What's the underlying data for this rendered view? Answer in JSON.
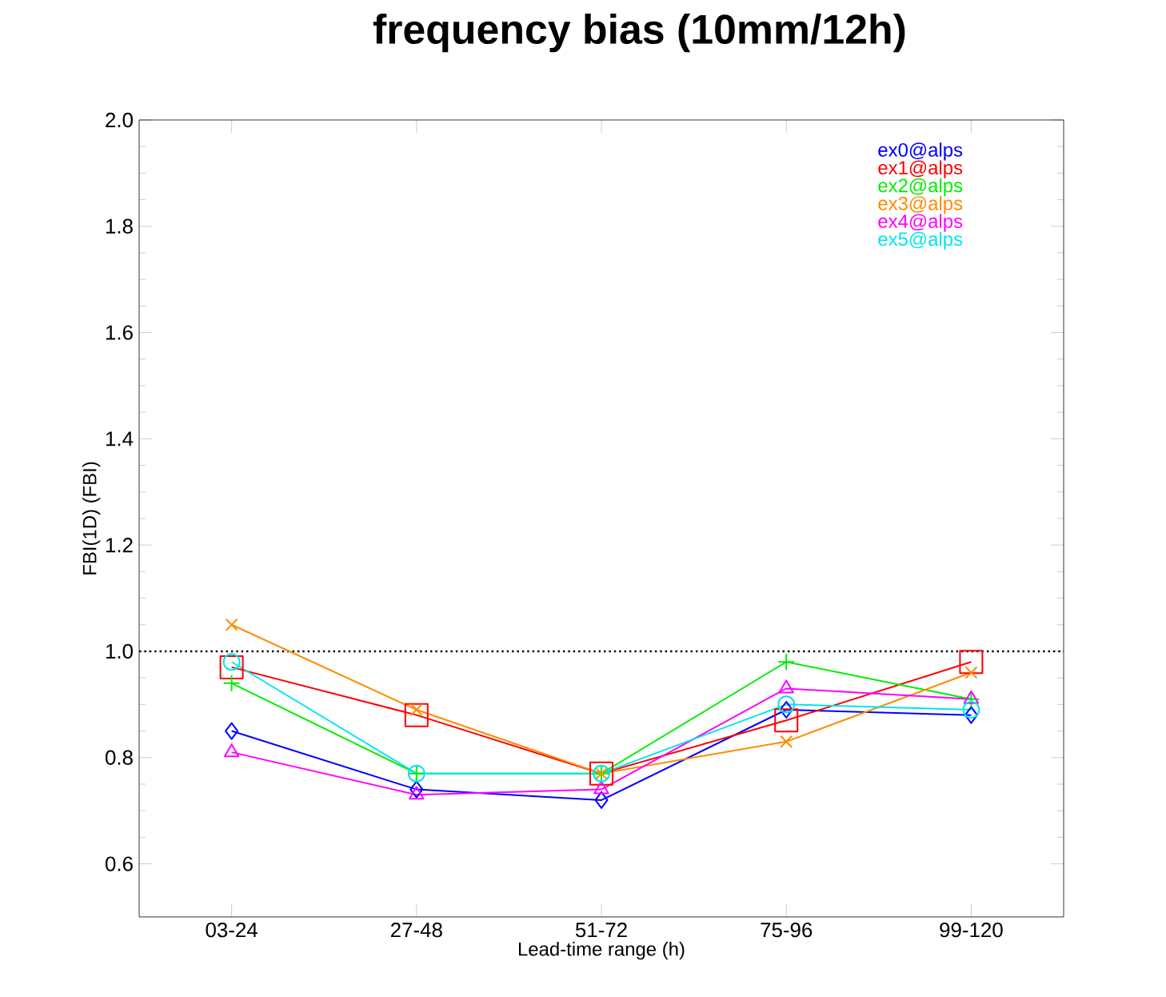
{
  "chart_data": {
    "type": "line",
    "title": "frequency bias (10mm/12h)",
    "xlabel": "Lead-time range (h)",
    "ylabel": "FBI(1D) (FBI)",
    "categories": [
      "03-24",
      "27-48",
      "51-72",
      "75-96",
      "99-120"
    ],
    "ylim": [
      0.5,
      2.0
    ],
    "yticks": [
      {
        "value": 0.6,
        "label": "0.6"
      },
      {
        "value": 0.8,
        "label": "0.8"
      },
      {
        "value": 1.0,
        "label": "1.0"
      },
      {
        "value": 1.2,
        "label": "1.2"
      },
      {
        "value": 1.4,
        "label": "1.4"
      },
      {
        "value": 1.6,
        "label": "1.6"
      },
      {
        "value": 1.8,
        "label": "1.8"
      },
      {
        "value": 2.0,
        "label": "2.0"
      }
    ],
    "legend": "top right",
    "grid": false,
    "ref_lines": [
      {
        "axis": "y",
        "value": 1.0,
        "line_style": "dotted",
        "color": "#000000"
      }
    ],
    "series": [
      {
        "name": "ex0@alps",
        "color": "#0000ff",
        "marker": "diamond",
        "values": [
          0.85,
          0.74,
          0.72,
          0.89,
          0.88
        ]
      },
      {
        "name": "ex1@alps",
        "color": "#ff0000",
        "marker": "square",
        "values": [
          0.97,
          0.88,
          0.77,
          0.87,
          0.98
        ]
      },
      {
        "name": "ex2@alps",
        "color": "#00ee00",
        "marker": "plus",
        "values": [
          0.94,
          0.77,
          0.77,
          0.98,
          0.91
        ]
      },
      {
        "name": "ex3@alps",
        "color": "#ff8c00",
        "marker": "cross",
        "values": [
          1.05,
          0.89,
          0.77,
          0.83,
          0.96
        ]
      },
      {
        "name": "ex4@alps",
        "color": "#ff00ff",
        "marker": "triangle",
        "values": [
          0.81,
          0.73,
          0.74,
          0.93,
          0.91
        ]
      },
      {
        "name": "ex5@alps",
        "color": "#00e5ee",
        "marker": "circle",
        "values": [
          0.98,
          0.77,
          0.77,
          0.9,
          0.89
        ]
      }
    ]
  }
}
